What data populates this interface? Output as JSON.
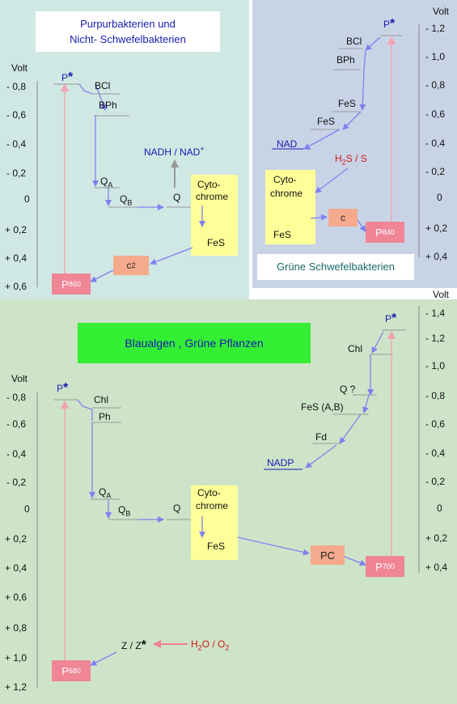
{
  "panel1": {
    "title_line1": "Purpurbakterien und",
    "title_line2": "Nicht- Schwefelbakterien",
    "volt_label": "Volt",
    "axis": [
      "- 0,8",
      "- 0,6",
      "- 0,4",
      "- 0,2",
      "0",
      "+ 0,2",
      "+ 0,4",
      "+ 0,6"
    ],
    "p_star": "P",
    "bcl": "BCl",
    "bph": "BPh",
    "qa": "Q",
    "qa_sub": "A",
    "qb": "Q",
    "qb_sub": "B",
    "q": "Q",
    "nadh": "NADH / NAD",
    "nadh_sup": "+",
    "cyto1": "Cyto-",
    "cyto2": "chrome",
    "fes": "FeS",
    "c2": "c",
    "c2_sub": "2",
    "p860": "P",
    "p860_sub": "860"
  },
  "panel2": {
    "volt_label": "Volt",
    "axis": [
      "- 1,2",
      "- 1,0",
      "- 0,8",
      "- 0,6",
      "- 0,4",
      "- 0,2",
      "0",
      "+ 0,2",
      "+ 0,4"
    ],
    "p_star": "P",
    "bcl": "BCl",
    "bph": "BPh",
    "fes1": "FeS",
    "fes2": "FeS",
    "nad": "NAD",
    "h2s": "H",
    "h2s_sub": "2",
    "h2s_rest": "S / S",
    "cyto1": "Cyto-",
    "cyto2": "chrome",
    "fes": "FeS",
    "c": "c",
    "p840": "P",
    "p840_sub": "840",
    "title": "Grüne Schwefelbakterien"
  },
  "panel3": {
    "title": "Blaualgen , Grüne Pflanzen",
    "volt_left": "Volt",
    "volt_right": "Volt",
    "axis_left": [
      "- 0,8",
      "- 0,6",
      "- 0,4",
      "- 0,2",
      "0",
      "+ 0,2",
      "+ 0,4",
      "+ 0,6",
      "+ 0,8",
      "+ 1,0",
      "+ 1,2"
    ],
    "axis_right": [
      "- 1,4",
      "- 1,2",
      "- 1,0",
      "- 0,8",
      "- 0,6",
      "- 0,4",
      "- 0,2",
      "0",
      "+ 0,2",
      "+ 0,4"
    ],
    "p_star_left": "P",
    "chl_left": "Chl",
    "ph": "Ph",
    "qa": "Q",
    "qa_sub": "A",
    "qb": "Q",
    "qb_sub": "B",
    "q": "Q",
    "cyto1": "Cyto-",
    "cyto2": "chrome",
    "fes": "FeS",
    "pc": "PC",
    "p700": "P",
    "p700_sub": "700",
    "p680": "P",
    "p680_sub": "680",
    "z": "Z / Z",
    "h2o": "H",
    "h2o_sub1": "2",
    "h2o_mid": "O / O",
    "h2o_sub2": "2",
    "p_star_right": "P",
    "chl_right": "Chl",
    "q_q": "Q ?",
    "fes_ab": "FeS (A,B)",
    "fd": "Fd",
    "nadp": "NADP"
  }
}
